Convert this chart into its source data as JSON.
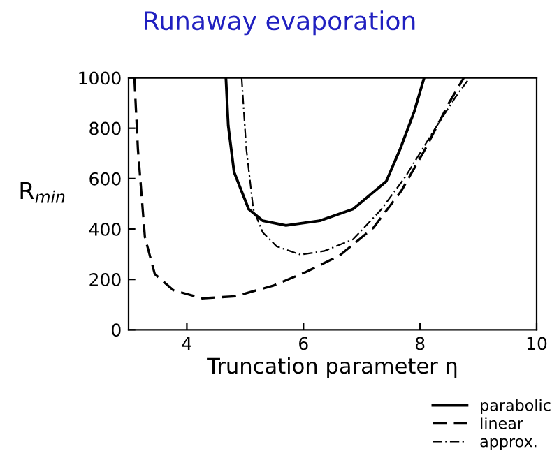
{
  "chart_data": {
    "type": "line",
    "title": "Runaway evaporation",
    "xlabel": "Truncation parameter η",
    "ylabel": "R$_{min}$",
    "xlim": [
      3,
      10
    ],
    "xticks": [
      4,
      6,
      8,
      10
    ],
    "ylim": [
      0,
      1000
    ],
    "yticks": [
      0,
      200,
      400,
      600,
      800,
      1000
    ],
    "grid": false,
    "legend": "bottom right",
    "marker": "none",
    "series": [
      {
        "name": "parabolic",
        "color": "#000000",
        "line_style": "solid",
        "x": [
          4.67,
          4.71,
          4.78,
          4.81,
          5.06,
          5.3,
          5.7,
          6.28,
          6.85,
          7.42,
          7.66,
          7.9,
          8.07
        ],
        "values": [
          1000,
          810,
          681,
          626,
          479,
          433,
          414,
          433,
          479,
          589,
          718,
          866,
          1000
        ]
      },
      {
        "name": "linear",
        "color": "#000000",
        "line_style": "dashed",
        "x": [
          3.1,
          3.16,
          3.28,
          3.45,
          3.77,
          4.26,
          4.83,
          5.48,
          6.05,
          6.62,
          7.2,
          7.68,
          8.09,
          8.5,
          8.75
        ],
        "values": [
          1000,
          718,
          368,
          221,
          157,
          125,
          133,
          175,
          230,
          295,
          405,
          552,
          718,
          902,
          1000
        ]
      },
      {
        "name": "approx.",
        "color": "#000000",
        "line_style": "dashdot",
        "x": [
          4.94,
          5.02,
          5.14,
          5.3,
          5.54,
          5.95,
          6.36,
          6.85,
          7.34,
          7.75,
          8.24,
          8.6,
          8.85
        ],
        "values": [
          1000,
          718,
          479,
          387,
          331,
          298,
          313,
          359,
          479,
          608,
          792,
          921,
          1000
        ]
      }
    ]
  }
}
